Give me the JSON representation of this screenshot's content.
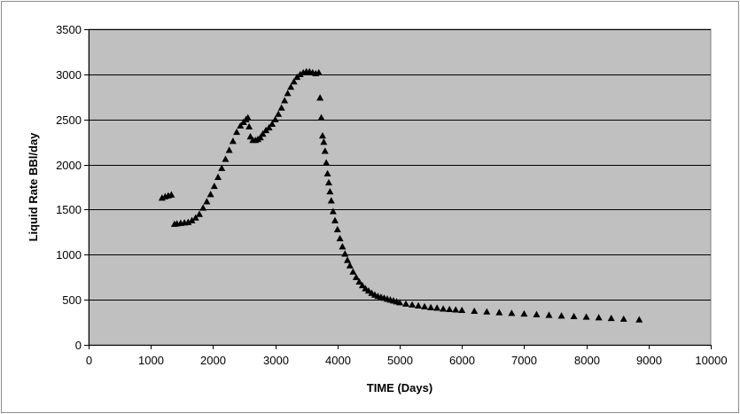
{
  "chart_data": {
    "type": "scatter",
    "title": "",
    "xlabel": "TIME (Days)",
    "ylabel": "Liquid Rate BBl/day",
    "xlim": [
      0,
      10000
    ],
    "ylim": [
      0,
      3500
    ],
    "x_ticks": [
      0,
      1000,
      2000,
      3000,
      4000,
      5000,
      6000,
      7000,
      8000,
      9000,
      10000
    ],
    "y_ticks": [
      0,
      500,
      1000,
      1500,
      2000,
      2500,
      3000,
      3500
    ],
    "x_tick_labels": [
      "0",
      "1000",
      "2000",
      "3000",
      "4000",
      "5000",
      "6000",
      "7000",
      "8000",
      "9000",
      "10000"
    ],
    "y_tick_labels": [
      "0",
      "500",
      "1000",
      "1500",
      "2000",
      "2500",
      "3000",
      "3500"
    ],
    "grid": "horizontal",
    "legend": "none",
    "marker": "triangle",
    "colors": {
      "plot_area": "#c0c0c0",
      "marker": "#000000",
      "gridline": "#000000",
      "frame": "#8c8c8c"
    },
    "series": [
      {
        "x": [
          1180,
          1230,
          1280,
          1330,
          1380,
          1420,
          1480,
          1540,
          1600,
          1660,
          1720,
          1780,
          1840,
          1900,
          1960,
          2020,
          2080,
          2140,
          2200,
          2260,
          2320,
          2380,
          2440,
          2490,
          2530,
          2560,
          2580,
          2600,
          2640,
          2680,
          2720,
          2760,
          2800,
          2850,
          2900,
          2950,
          3000,
          3050,
          3100,
          3150,
          3200,
          3250,
          3300,
          3350,
          3400,
          3450,
          3500,
          3550,
          3600,
          3650,
          3700,
          3720,
          3740,
          3760,
          3780,
          3800,
          3820,
          3840,
          3860,
          3880,
          3900,
          3930,
          3960,
          4000,
          4040,
          4080,
          4120,
          4160,
          4200,
          4250,
          4300,
          4350,
          4400,
          4450,
          4500,
          4550,
          4600,
          4650,
          4700,
          4750,
          4800,
          4850,
          4900,
          4950,
          5000,
          5100,
          5200,
          5300,
          5400,
          5500,
          5600,
          5700,
          5800,
          5900,
          6000,
          6200,
          6400,
          6600,
          6800,
          7000,
          7200,
          7400,
          7600,
          7800,
          8000,
          8200,
          8400,
          8600,
          8850
        ],
        "y": [
          1630,
          1645,
          1655,
          1665,
          1340,
          1345,
          1350,
          1355,
          1360,
          1380,
          1410,
          1450,
          1520,
          1590,
          1670,
          1760,
          1860,
          1960,
          2060,
          2160,
          2260,
          2360,
          2430,
          2470,
          2500,
          2520,
          2420,
          2310,
          2270,
          2270,
          2280,
          2300,
          2340,
          2380,
          2410,
          2450,
          2500,
          2560,
          2630,
          2710,
          2790,
          2860,
          2920,
          2970,
          3000,
          3020,
          3030,
          3030,
          3020,
          3010,
          3020,
          2740,
          2520,
          2320,
          2250,
          2150,
          2020,
          1900,
          1800,
          1700,
          1600,
          1480,
          1380,
          1280,
          1180,
          1090,
          1010,
          940,
          880,
          810,
          750,
          700,
          660,
          625,
          600,
          575,
          555,
          540,
          530,
          520,
          510,
          500,
          490,
          480,
          470,
          455,
          445,
          435,
          425,
          415,
          410,
          400,
          395,
          390,
          385,
          375,
          368,
          360,
          352,
          345,
          338,
          330,
          323,
          316,
          310,
          303,
          296,
          288,
          280
        ]
      }
    ]
  }
}
